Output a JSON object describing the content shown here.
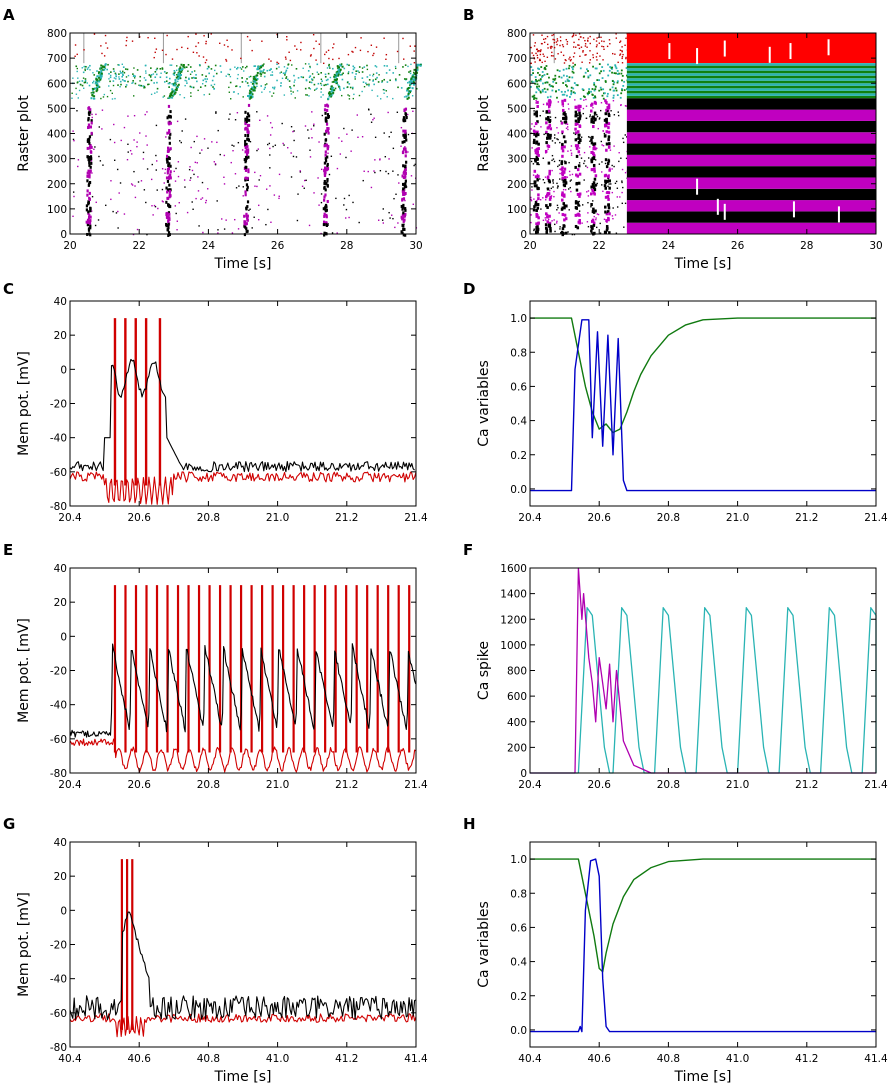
{
  "figure": {
    "panel_letters": [
      "A",
      "B",
      "C",
      "D",
      "E",
      "F",
      "G",
      "H"
    ]
  },
  "chart_data": [
    {
      "id": "A",
      "type": "raster",
      "title": "",
      "xlabel": "Time [s]",
      "ylabel": "Raster plot",
      "xlim": [
        20,
        30
      ],
      "ylim": [
        0,
        800
      ],
      "xticks": [
        20,
        22,
        24,
        26,
        28,
        30
      ],
      "yticks": [
        0,
        100,
        200,
        300,
        400,
        500,
        600,
        700,
        800
      ],
      "series": [
        {
          "name": "burst columns",
          "color": "#000000",
          "burst_times": [
            20.5,
            22.8,
            25.05,
            27.35,
            29.6
          ]
        },
        {
          "name": "population 1",
          "color": "#b000b0",
          "range": [
            0,
            500
          ]
        },
        {
          "name": "population 2",
          "color": "#000000",
          "range": [
            0,
            500
          ]
        },
        {
          "name": "population 3",
          "color": "#2ab4b4",
          "range": [
            500,
            680
          ]
        },
        {
          "name": "population 4",
          "color": "#108010",
          "range": [
            500,
            680
          ]
        },
        {
          "name": "population 5",
          "color": "#c00000",
          "range": [
            680,
            800
          ]
        }
      ]
    },
    {
      "id": "B",
      "type": "raster",
      "title": "",
      "xlabel": "Time [s]",
      "ylabel": "Raster plot",
      "xlim": [
        20,
        30
      ],
      "ylim": [
        0,
        800
      ],
      "xticks": [
        20,
        22,
        24,
        26,
        28,
        30
      ],
      "yticks": [
        0,
        100,
        200,
        300,
        400,
        500,
        600,
        700,
        800
      ],
      "transition_time": 22.8,
      "series": [
        {
          "name": "population 1",
          "color": "#c000c0",
          "range": [
            0,
            540
          ]
        },
        {
          "name": "population 2",
          "color": "#000000",
          "range": [
            0,
            540
          ]
        },
        {
          "name": "population 3",
          "color": "#2ab4b4",
          "range": [
            540,
            680
          ]
        },
        {
          "name": "population 4",
          "color": "#108010",
          "range": [
            540,
            680
          ]
        },
        {
          "name": "population 5",
          "color": "#ff0000",
          "range": [
            680,
            800
          ]
        }
      ]
    },
    {
      "id": "C",
      "type": "line",
      "title": "",
      "xlabel": "",
      "ylabel": "Mem pot. [mV]",
      "xlim": [
        20.4,
        21.4
      ],
      "ylim": [
        -80,
        40
      ],
      "xticks": [
        20.4,
        20.6,
        20.8,
        21.0,
        21.2,
        21.4
      ],
      "yticks": [
        -80,
        -60,
        -40,
        -20,
        0,
        20,
        40
      ],
      "series": [
        {
          "name": "black trace",
          "color": "#000000",
          "baseline": -57,
          "events": [
            {
              "x": 20.51,
              "y": -25
            },
            {
              "x": 20.55,
              "y": -3
            },
            {
              "x": 20.58,
              "y": -20
            },
            {
              "x": 20.61,
              "y": -2
            },
            {
              "x": 20.64,
              "y": -2
            },
            {
              "x": 20.7,
              "y": -55
            }
          ]
        },
        {
          "name": "red trace",
          "color": "#d00000",
          "baseline": -63,
          "spikes": [
            20.53,
            20.56,
            20.59,
            20.62,
            20.66
          ],
          "spike_peak": 30
        }
      ]
    },
    {
      "id": "D",
      "type": "line",
      "title": "",
      "xlabel": "",
      "ylabel": "Ca variables",
      "xlim": [
        20.4,
        21.4
      ],
      "ylim": [
        -0.1,
        1.1
      ],
      "xticks": [
        20.4,
        20.6,
        20.8,
        21.0,
        21.2,
        21.4
      ],
      "yticks": [
        0.0,
        0.2,
        0.4,
        0.6,
        0.8,
        1.0
      ],
      "series": [
        {
          "name": "green",
          "color": "#107a10",
          "points": [
            [
              20.4,
              1.0
            ],
            [
              20.52,
              1.0
            ],
            [
              20.54,
              0.8
            ],
            [
              20.56,
              0.6
            ],
            [
              20.58,
              0.45
            ],
            [
              20.6,
              0.35
            ],
            [
              20.62,
              0.38
            ],
            [
              20.64,
              0.33
            ],
            [
              20.66,
              0.35
            ],
            [
              20.68,
              0.45
            ],
            [
              20.7,
              0.57
            ],
            [
              20.72,
              0.67
            ],
            [
              20.75,
              0.78
            ],
            [
              20.8,
              0.9
            ],
            [
              20.85,
              0.96
            ],
            [
              20.9,
              0.99
            ],
            [
              21.0,
              1.0
            ],
            [
              21.4,
              1.0
            ]
          ]
        },
        {
          "name": "blue",
          "color": "#0000c8",
          "points": [
            [
              20.4,
              -0.01
            ],
            [
              20.52,
              -0.01
            ],
            [
              20.53,
              0.7
            ],
            [
              20.55,
              0.99
            ],
            [
              20.57,
              0.99
            ],
            [
              20.58,
              0.3
            ],
            [
              20.595,
              0.92
            ],
            [
              20.61,
              0.25
            ],
            [
              20.625,
              0.9
            ],
            [
              20.64,
              0.2
            ],
            [
              20.655,
              0.88
            ],
            [
              20.67,
              0.05
            ],
            [
              20.68,
              -0.01
            ],
            [
              21.4,
              -0.01
            ]
          ]
        }
      ]
    },
    {
      "id": "E",
      "type": "line",
      "title": "",
      "xlabel": "",
      "ylabel": "Mem pot. [mV]",
      "xlim": [
        20.4,
        21.4
      ],
      "ylim": [
        -80,
        40
      ],
      "xticks": [
        20.4,
        20.6,
        20.8,
        21.0,
        21.2,
        21.4
      ],
      "yticks": [
        -80,
        -60,
        -40,
        -20,
        0,
        20,
        40
      ],
      "series": [
        {
          "name": "black trace",
          "color": "#000000",
          "baseline": -57,
          "burst_start": 20.52,
          "period": 0.041,
          "peak": -3,
          "trough": -55
        },
        {
          "name": "red trace",
          "color": "#d00000",
          "baseline": -62,
          "burst_start": 20.53,
          "period": 0.041,
          "spike_peak": 30,
          "trough": -75
        }
      ]
    },
    {
      "id": "F",
      "type": "line",
      "title": "",
      "xlabel": "",
      "ylabel": "Ca spike",
      "xlim": [
        20.4,
        21.4
      ],
      "ylim": [
        0,
        1600
      ],
      "xticks": [
        20.4,
        20.6,
        20.8,
        21.0,
        21.2,
        21.4
      ],
      "yticks": [
        0,
        200,
        400,
        600,
        800,
        1000,
        1200,
        1400,
        1600
      ],
      "series": [
        {
          "name": "cyan",
          "color": "#2ab4b4",
          "cycle_starts": [
            20.54,
            20.64,
            20.76,
            20.88,
            21.0,
            21.12,
            21.24,
            21.36
          ],
          "peak": 1290
        },
        {
          "name": "magenta",
          "color": "#b000b0",
          "points": [
            [
              20.4,
              0
            ],
            [
              20.53,
              0
            ],
            [
              20.54,
              1600
            ],
            [
              20.55,
              1200
            ],
            [
              20.555,
              1400
            ],
            [
              20.57,
              900
            ],
            [
              20.58,
              700
            ],
            [
              20.59,
              400
            ],
            [
              20.6,
              900
            ],
            [
              20.61,
              700
            ],
            [
              20.62,
              500
            ],
            [
              20.63,
              850
            ],
            [
              20.64,
              400
            ],
            [
              20.65,
              800
            ],
            [
              20.67,
              250
            ],
            [
              20.7,
              60
            ],
            [
              20.75,
              0
            ],
            [
              21.4,
              0
            ]
          ]
        }
      ]
    },
    {
      "id": "G",
      "type": "line",
      "title": "",
      "xlabel": "Time [s]",
      "ylabel": "Mem pot. [mV]",
      "xlim": [
        40.4,
        41.4
      ],
      "ylim": [
        -80,
        40
      ],
      "xticks": [
        40.4,
        40.6,
        40.8,
        41.0,
        41.2,
        41.4
      ],
      "yticks": [
        -80,
        -60,
        -40,
        -20,
        0,
        20,
        40
      ],
      "series": [
        {
          "name": "black trace",
          "color": "#000000",
          "baseline": -57,
          "burst_center": 40.57,
          "peak": 0
        },
        {
          "name": "red trace",
          "color": "#d00000",
          "baseline": -63,
          "spikes": [
            40.55,
            40.565,
            40.58
          ],
          "spike_peak": 30
        }
      ]
    },
    {
      "id": "H",
      "type": "line",
      "title": "",
      "xlabel": "Time [s]",
      "ylabel": "Ca variables",
      "xlim": [
        40.4,
        41.4
      ],
      "ylim": [
        -0.1,
        1.1
      ],
      "xticks": [
        40.4,
        40.6,
        40.8,
        41.0,
        41.2,
        41.4
      ],
      "yticks": [
        0.0,
        0.2,
        0.4,
        0.6,
        0.8,
        1.0
      ],
      "series": [
        {
          "name": "green",
          "color": "#107a10",
          "points": [
            [
              40.4,
              1.0
            ],
            [
              40.54,
              1.0
            ],
            [
              40.555,
              0.85
            ],
            [
              40.57,
              0.7
            ],
            [
              40.585,
              0.55
            ],
            [
              40.6,
              0.36
            ],
            [
              40.61,
              0.34
            ],
            [
              40.62,
              0.45
            ],
            [
              40.64,
              0.62
            ],
            [
              40.67,
              0.78
            ],
            [
              40.7,
              0.88
            ],
            [
              40.75,
              0.95
            ],
            [
              40.8,
              0.985
            ],
            [
              40.9,
              1.0
            ],
            [
              41.4,
              1.0
            ]
          ]
        },
        {
          "name": "blue",
          "color": "#0000c8",
          "points": [
            [
              40.4,
              -0.01
            ],
            [
              40.54,
              -0.01
            ],
            [
              40.545,
              0.02
            ],
            [
              40.55,
              -0.01
            ],
            [
              40.56,
              0.7
            ],
            [
              40.575,
              0.99
            ],
            [
              40.59,
              1.0
            ],
            [
              40.6,
              0.9
            ],
            [
              40.61,
              0.3
            ],
            [
              40.62,
              0.02
            ],
            [
              40.63,
              -0.01
            ],
            [
              41.4,
              -0.01
            ]
          ]
        }
      ]
    }
  ]
}
